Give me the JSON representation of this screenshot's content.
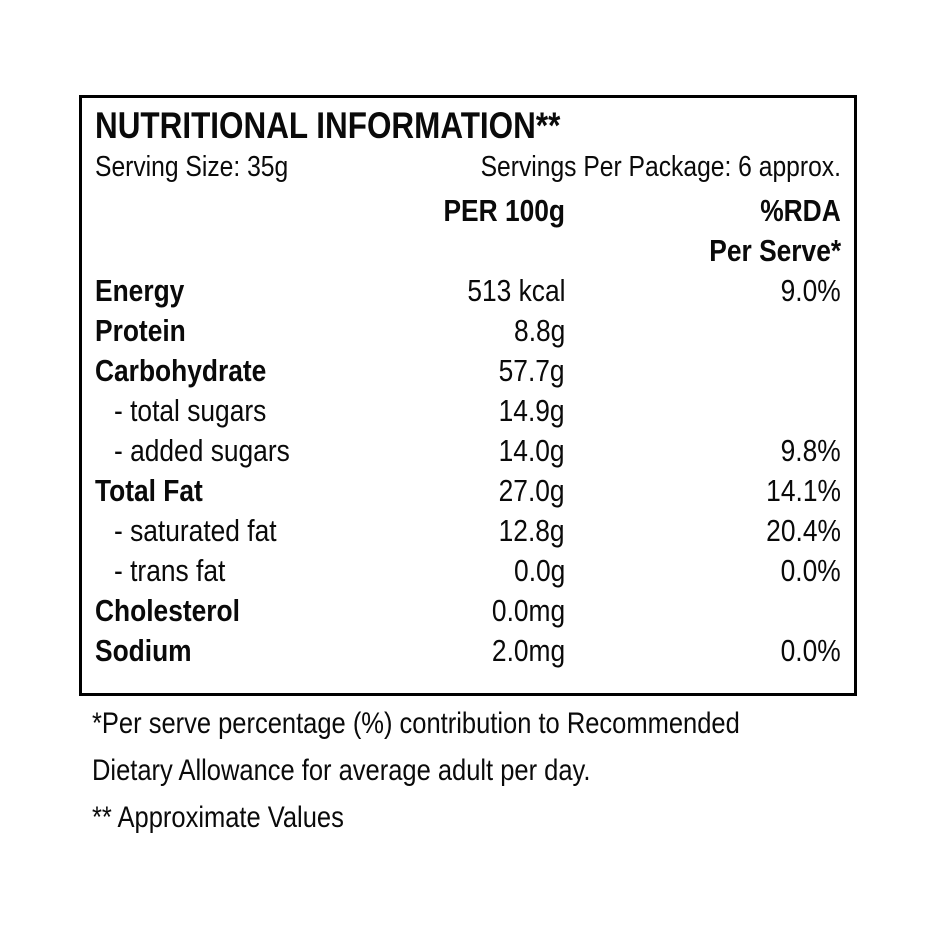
{
  "label": {
    "title": "NUTRITIONAL INFORMATION**",
    "serving_size": "Serving Size: 35g",
    "servings_per_package": "Servings Per Package: 6 approx.",
    "columns": {
      "per_100g": "PER 100g",
      "rda": "%RDA",
      "rda_sub": "Per Serve*"
    },
    "rows": [
      {
        "name": "Energy",
        "value": "513 kcal",
        "rda": "9.0%",
        "bold": true
      },
      {
        "name": "Protein",
        "value": "8.8g",
        "rda": "",
        "bold": true
      },
      {
        "name": "Carbohydrate",
        "value": "57.7g",
        "rda": "",
        "bold": true
      },
      {
        "name": "- total sugars",
        "value": "14.9g",
        "rda": "",
        "bold": false
      },
      {
        "name": "- added sugars",
        "value": "14.0g",
        "rda": "9.8%",
        "bold": false
      },
      {
        "name": "Total Fat",
        "value": "27.0g",
        "rda": "14.1%",
        "bold": true
      },
      {
        "name": "- saturated fat",
        "value": "12.8g",
        "rda": "20.4%",
        "bold": false
      },
      {
        "name": "- trans fat",
        "value": "0.0g",
        "rda": "0.0%",
        "bold": false
      },
      {
        "name": "Cholesterol",
        "value": "0.0mg",
        "rda": "",
        "bold": true
      },
      {
        "name": "Sodium",
        "value": "2.0mg",
        "rda": "0.0%",
        "bold": true
      }
    ],
    "footnotes": {
      "line1": "*Per serve percentage (%) contribution to Recommended",
      "line2": "Dietary Allowance for average adult per day.",
      "line3": "** Approximate Values"
    },
    "colors": {
      "text": "#0a0a0a",
      "border": "#000000",
      "background": "#ffffff"
    }
  }
}
